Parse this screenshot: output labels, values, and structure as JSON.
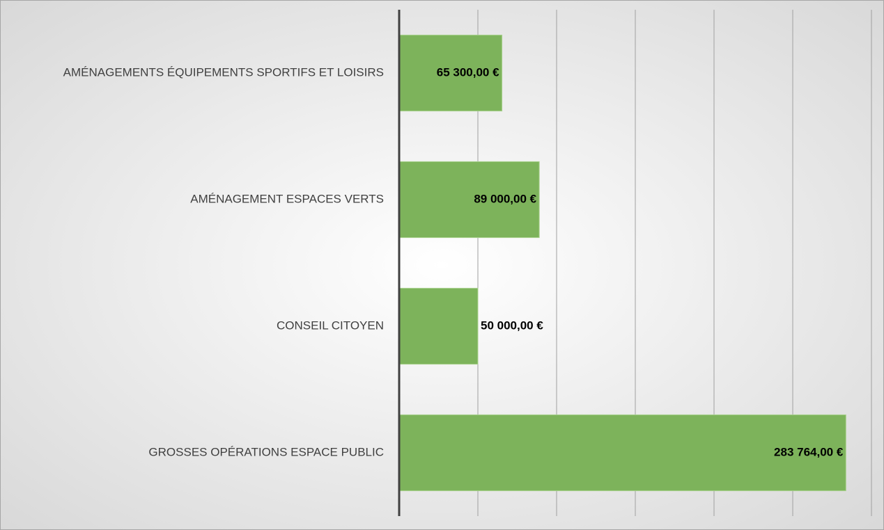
{
  "chart_data": {
    "type": "bar",
    "orientation": "horizontal",
    "categories": [
      "AMÉNAGEMENTS ÉQUIPEMENTS SPORTIFS ET LOISIRS",
      "AMÉNAGEMENT ESPACES VERTS",
      "CONSEIL CITOYEN",
      "GROSSES OPÉRATIONS ESPACE PUBLIC"
    ],
    "values": [
      65300,
      89000,
      50000,
      283764
    ],
    "value_labels": [
      "65 300,00 €",
      "89 000,00 €",
      "50 000,00 €",
      "283 764,00 €"
    ],
    "color": "#7db35b",
    "xlim": [
      0,
      300000
    ],
    "xticks": [
      0,
      50000,
      100000,
      150000,
      200000,
      250000,
      300000
    ],
    "grid": true
  }
}
